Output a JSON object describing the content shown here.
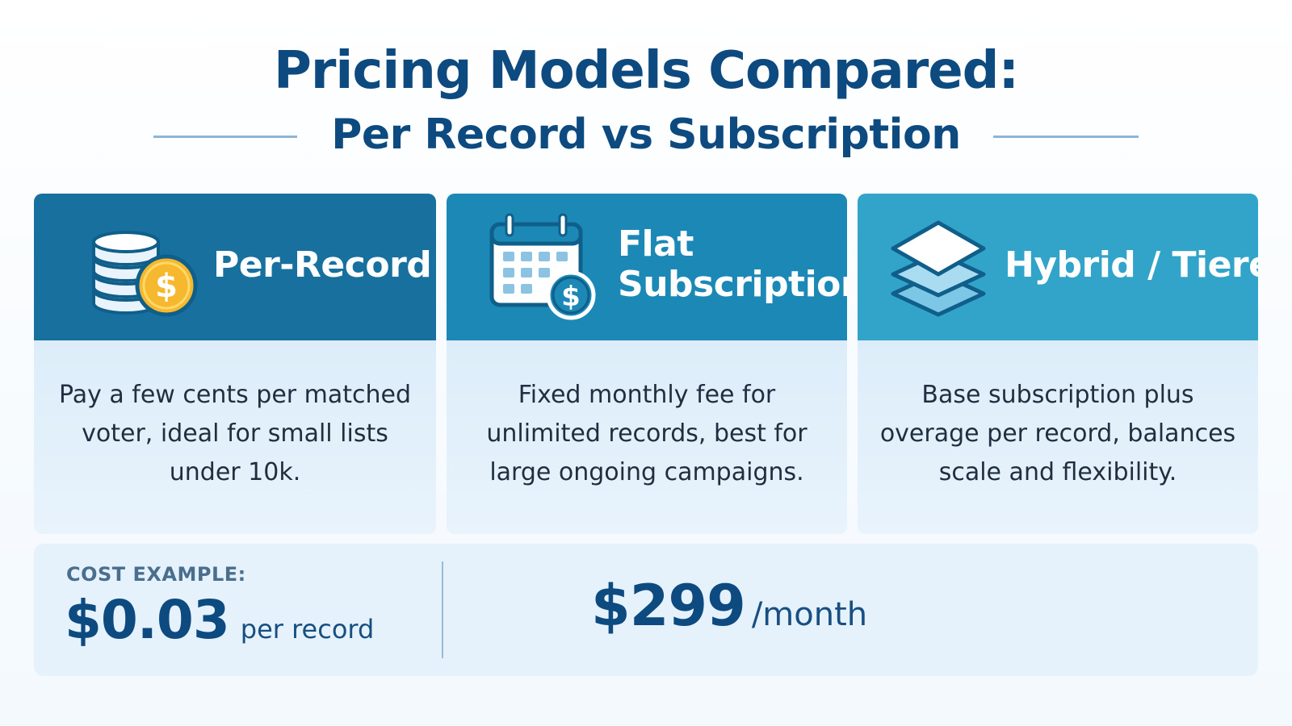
{
  "header": {
    "title": "Pricing Models Compared:",
    "subtitle": "Per Record vs Subscription"
  },
  "cards": [
    {
      "title": "Per-Record",
      "icon": "coins-dollar-icon",
      "description": "Pay a few cents per matched voter, ideal for small lists under 10k."
    },
    {
      "title_line1": "Flat",
      "title_line2": "Subscription",
      "icon": "calendar-dollar-icon",
      "description": "Fixed monthly fee for unlimited records, best for large ongoing campaigns."
    },
    {
      "title": "Hybrid / Tiered",
      "icon": "layers-icon",
      "description": "Base subscription plus overage per record, balances scale and flexibility."
    }
  ],
  "cost_example": {
    "label": "COST EXAMPLE:",
    "per_record_value": "$0.03",
    "per_record_unit": "per record",
    "subscription_value": "$299",
    "subscription_unit": "/month"
  },
  "colors": {
    "title": "#0d4a80",
    "card1_header": "#17709e",
    "card2_header": "#1b88b5",
    "card3_header": "#33a4c9",
    "card_body": "#e6f2fb",
    "coin": "#f5b82e"
  }
}
